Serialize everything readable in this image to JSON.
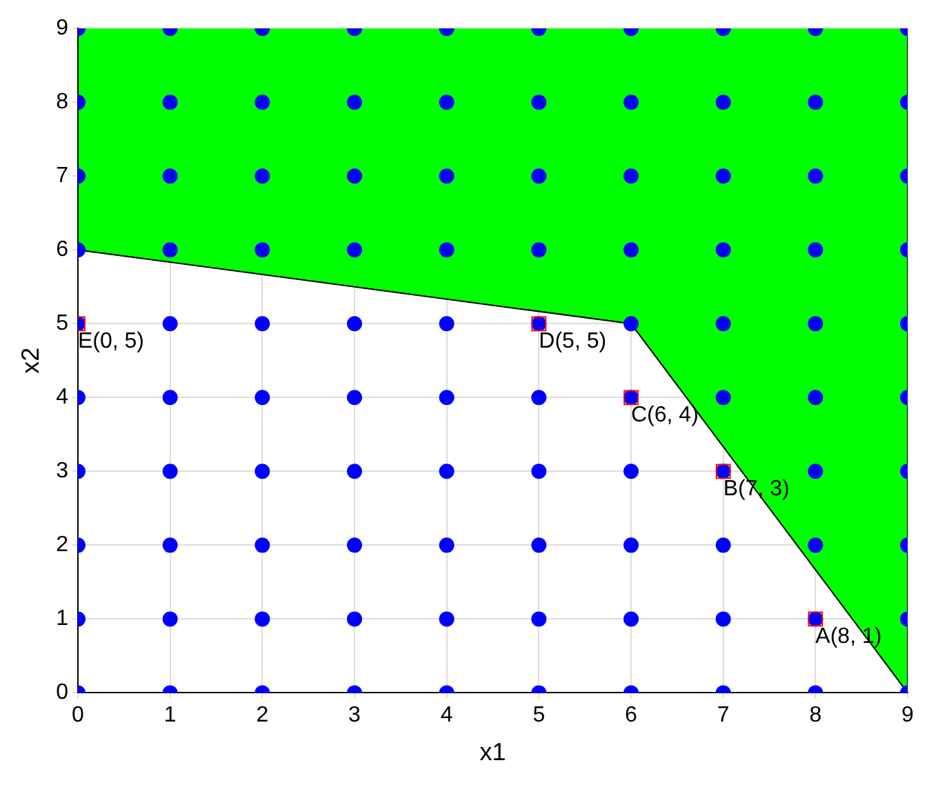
{
  "chart_data": {
    "type": "scatter",
    "xlabel": "x1",
    "ylabel": "x2",
    "xlim": [
      0,
      9
    ],
    "ylim": [
      0,
      9
    ],
    "xticks": [
      0,
      1,
      2,
      3,
      4,
      5,
      6,
      7,
      8,
      9
    ],
    "yticks": [
      0,
      1,
      2,
      3,
      4,
      5,
      6,
      7,
      8,
      9
    ],
    "grid": true,
    "legend": false,
    "series": [
      {
        "type": "area",
        "color": "#00ff00",
        "marker": "none",
        "x": [
          0,
          0,
          6,
          9,
          9
        ],
        "values": [
          9,
          6,
          5,
          0,
          9
        ]
      },
      {
        "color": "#0000ff",
        "marker": "circle",
        "x": [
          0,
          1,
          2,
          3,
          4,
          5,
          6,
          7,
          8,
          9,
          0,
          1,
          2,
          3,
          4,
          5,
          6,
          7,
          8,
          9,
          0,
          1,
          2,
          3,
          4,
          5,
          6,
          7,
          8,
          9,
          0,
          1,
          2,
          3,
          4,
          5,
          6,
          7,
          8,
          9,
          0,
          1,
          2,
          3,
          4,
          5,
          6,
          7,
          8,
          9,
          0,
          1,
          2,
          3,
          4,
          5,
          6,
          7,
          8,
          9,
          0,
          1,
          2,
          3,
          4,
          5,
          6,
          7,
          8,
          9,
          0,
          1,
          2,
          3,
          4,
          5,
          6,
          7,
          8,
          9,
          0,
          1,
          2,
          3,
          4,
          5,
          6,
          7,
          8,
          9,
          0,
          1,
          2,
          3,
          4,
          5,
          6,
          7,
          8,
          9
        ],
        "values": [
          0,
          0,
          0,
          0,
          0,
          0,
          0,
          0,
          0,
          0,
          1,
          1,
          1,
          1,
          1,
          1,
          1,
          1,
          1,
          1,
          2,
          2,
          2,
          2,
          2,
          2,
          2,
          2,
          2,
          2,
          3,
          3,
          3,
          3,
          3,
          3,
          3,
          3,
          3,
          3,
          4,
          4,
          4,
          4,
          4,
          4,
          4,
          4,
          4,
          4,
          5,
          5,
          5,
          5,
          5,
          5,
          5,
          5,
          5,
          5,
          6,
          6,
          6,
          6,
          6,
          6,
          6,
          6,
          6,
          6,
          7,
          7,
          7,
          7,
          7,
          7,
          7,
          7,
          7,
          7,
          8,
          8,
          8,
          8,
          8,
          8,
          8,
          8,
          8,
          8,
          9,
          9,
          9,
          9,
          9,
          9,
          9,
          9,
          9,
          9
        ]
      },
      {
        "color": "#ff0000",
        "marker": "square",
        "x": [
          8,
          7,
          6,
          5,
          0
        ],
        "values": [
          1,
          3,
          4,
          5,
          5
        ]
      }
    ],
    "annotations": [
      {
        "text": "A(8, 1)",
        "x": 8,
        "y": 1
      },
      {
        "text": "B(7, 3)",
        "x": 7,
        "y": 3
      },
      {
        "text": "C(6, 4)",
        "x": 6,
        "y": 4
      },
      {
        "text": "D(5, 5)",
        "x": 5,
        "y": 5
      },
      {
        "text": "E(0, 5)",
        "x": 0,
        "y": 5
      }
    ]
  }
}
